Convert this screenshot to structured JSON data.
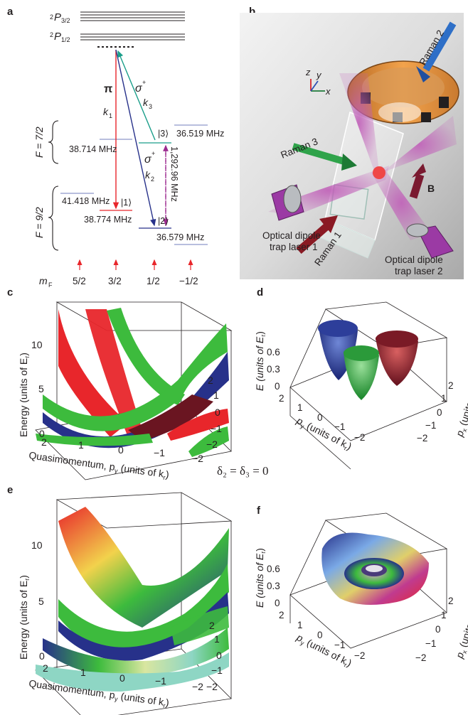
{
  "panels": {
    "a": "a",
    "b": "b",
    "c": "c",
    "d": "d",
    "e": "e",
    "f": "f"
  },
  "panel_a": {
    "states": {
      "p32": "P",
      "p32_sup": "2",
      "p32_sub": "3/2",
      "p12": "P",
      "p12_sup": "2",
      "p12_sub": "1/2"
    },
    "pi": "π",
    "sigma1": "σ",
    "sigma1_sup": "+",
    "sigma2": "σ",
    "sigma2_sup": "+",
    "k1": "k",
    "k1_sub": "1",
    "k2": "k",
    "k2_sub": "2",
    "k3": "k",
    "k3_sub": "3",
    "F72": "F = 7/2",
    "F92": "F = 9/2",
    "freqs": {
      "f36519": "36.519 MHz",
      "f38714": "38.714 MHz",
      "f1292": "1,292.96 MHz",
      "f41418": "41.418 MHz",
      "f38774": "38.774 MHz",
      "f36579": "36.579 MHz"
    },
    "kets": {
      "k3": "|3⟩",
      "k1": "|1⟩",
      "k2": "|2⟩"
    },
    "mF_label": "m",
    "mF_sub": "F",
    "mF_values": [
      "5/2",
      "3/2",
      "1/2",
      "−1/2"
    ]
  },
  "panel_b": {
    "raman1": "Raman 1",
    "raman2": "Raman 2",
    "raman3": "Raman 3",
    "trap1_line1": "Optical dipole",
    "trap1_line2": "trap laser 1",
    "trap2_line1": "Optical dipole",
    "trap2_line2": "trap laser 2",
    "B": "B",
    "axes": {
      "x": "x",
      "y": "y",
      "z": "z"
    }
  },
  "panel_c": {
    "ylabel": "Energy (units of E",
    "ylabel_sub": "r",
    "ylabel_end": ")",
    "xlabel": "Quasimomentum, p",
    "xlabel_sub": "y",
    "xlabel_end": " (units of k",
    "xlabel_sub2": "r",
    "xlabel_end2": ")",
    "zticks": [
      "0",
      "5",
      "10"
    ],
    "xticks": [
      "2",
      "1",
      "0",
      "−1",
      "−2"
    ],
    "yticks": [
      "2",
      "1",
      "0",
      "−1",
      "−2"
    ]
  },
  "panel_d": {
    "zlabel": "E (units of E",
    "zlabel_sub": "r",
    "zlabel_end": ")",
    "xlabel": "p",
    "xlabel_sub": "y",
    "xlabel_end": " (units of k",
    "xlabel_sub2": "r",
    "xlabel_end2": ")",
    "ylabel": "p",
    "ylabel_sub": "x",
    "ylabel_end": " (units of k",
    "ylabel_sub2": "r",
    "ylabel_end2": ")",
    "zticks": [
      "0",
      "0.3",
      "0.6"
    ],
    "xticks": [
      "2",
      "1",
      "0",
      "−1",
      "−2"
    ],
    "yticks": [
      "2",
      "1",
      "0",
      "−1",
      "−2"
    ]
  },
  "delta": {
    "text": "δ₂ = δ₃ = 0"
  },
  "panel_e": {
    "ylabel": "Energy (units of E",
    "ylabel_sub": "r",
    "ylabel_end": ")",
    "xlabel": "Quasimomentum, p",
    "xlabel_sub": "y",
    "xlabel_end": " (units of k",
    "xlabel_sub2": "r",
    "xlabel_end2": ")",
    "zticks": [
      "0",
      "5",
      "10"
    ],
    "xticks": [
      "2",
      "1",
      "0",
      "−1",
      "−2"
    ],
    "yticks": [
      "2",
      "1",
      "0",
      "−1",
      "−2"
    ]
  },
  "panel_f": {
    "zlabel": "E (units of E",
    "zlabel_sub": "r",
    "zlabel_end": ")",
    "xlabel": "p",
    "xlabel_sub": "y",
    "xlabel_end": " (units of k",
    "xlabel_sub2": "r",
    "xlabel_end2": ")",
    "ylabel": "p",
    "ylabel_sub": "x",
    "ylabel_end": " (units of k",
    "ylabel_sub2": "r",
    "ylabel_end2": ")",
    "zticks": [
      "0",
      "0.3",
      "0.6"
    ],
    "xticks": [
      "2",
      "1",
      "0",
      "−1",
      "−2"
    ],
    "yticks": [
      "2",
      "1",
      "0",
      "−1",
      "−2"
    ]
  },
  "colors": {
    "red": "#e8262b",
    "blue": "#27318a",
    "green": "#3dbb3d",
    "teal": "#1b9e8a",
    "purple": "#9b2a8f",
    "orange": "#f2a34c"
  }
}
